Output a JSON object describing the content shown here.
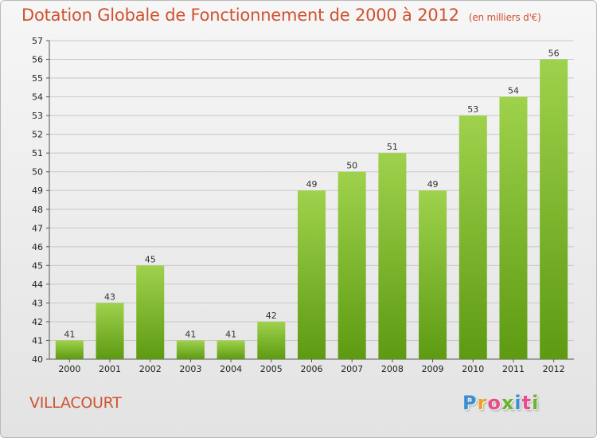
{
  "title": "Dotation Globale de Fonctionnement de 2000 à 2012",
  "subtitle": "(en milliers d'€)",
  "city": "VILLACOURT",
  "logo": {
    "letters": [
      "P",
      "r",
      "o",
      "x",
      "i",
      "t",
      "i"
    ],
    "colors": [
      "#3a8fd0",
      "#f0a020",
      "#e84c8a",
      "#6bb22e",
      "#3a8fd0",
      "#e84c8a",
      "#6bb22e"
    ]
  },
  "colors": {
    "bar_top": "#9fd24c",
    "bar_bottom": "#5d9a12",
    "grid": "#c8c8c8",
    "accent": "#d05230"
  },
  "chart_data": {
    "type": "bar",
    "categories": [
      "2000",
      "2001",
      "2002",
      "2003",
      "2004",
      "2005",
      "2006",
      "2007",
      "2008",
      "2009",
      "2010",
      "2011",
      "2012"
    ],
    "values": [
      41,
      43,
      45,
      41,
      41,
      42,
      49,
      50,
      51,
      49,
      53,
      54,
      56
    ],
    "data_labels": [
      "41",
      "43",
      "45",
      "41",
      "41",
      "42",
      "49",
      "50",
      "51",
      "49",
      "53",
      "54",
      "56"
    ],
    "ylim": [
      40,
      57
    ],
    "yticks": [
      "40",
      "41",
      "42",
      "43",
      "44",
      "45",
      "46",
      "47",
      "48",
      "49",
      "50",
      "51",
      "52",
      "53",
      "54",
      "55",
      "56",
      "57"
    ],
    "grid": true
  }
}
